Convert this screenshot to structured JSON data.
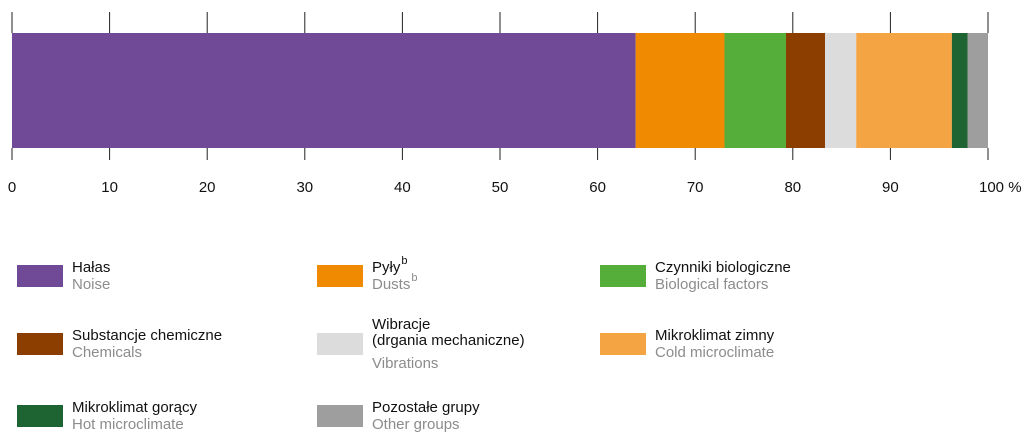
{
  "chart_data": {
    "type": "stacked-bar",
    "orientation": "horizontal",
    "xlim": [
      0,
      100
    ],
    "xticks": [
      0,
      10,
      20,
      30,
      40,
      50,
      60,
      70,
      80,
      90,
      {
        "value": 100,
        "label": "100 %"
      }
    ],
    "series": [
      {
        "name": "Hałas",
        "name_en": "Noise",
        "color": "#714a97",
        "values": [
          63.9
        ]
      },
      {
        "name": "Pyły",
        "note": "b",
        "name_en": "Dusts",
        "note_en": "b",
        "color": "#f08a00",
        "values": [
          9.1
        ]
      },
      {
        "name": "Czynniki biologiczne",
        "name_en": "Biological factors",
        "color": "#55ae3a",
        "values": [
          6.3
        ]
      },
      {
        "name": "Substancje chemiczne",
        "name_en": "Chemicals",
        "color": "#8b3e00",
        "values": [
          4.0
        ]
      },
      {
        "name": "Wibracje\n(drgania mechaniczne)",
        "name_en": "Vibrations",
        "color": "#dcdcdc",
        "values": [
          3.2
        ]
      },
      {
        "name": "Mikroklimat zimny",
        "name_en": "Cold microclimate",
        "color": "#f5a444",
        "values": [
          9.8
        ]
      },
      {
        "name": "Mikroklimat gorący",
        "name_en": "Hot microclimate",
        "color": "#1e6432",
        "values": [
          1.6
        ]
      },
      {
        "name": "Pozostałe grupy",
        "name_en": "Other groups",
        "color": "#9e9e9e",
        "values": [
          2.1
        ]
      }
    ]
  }
}
